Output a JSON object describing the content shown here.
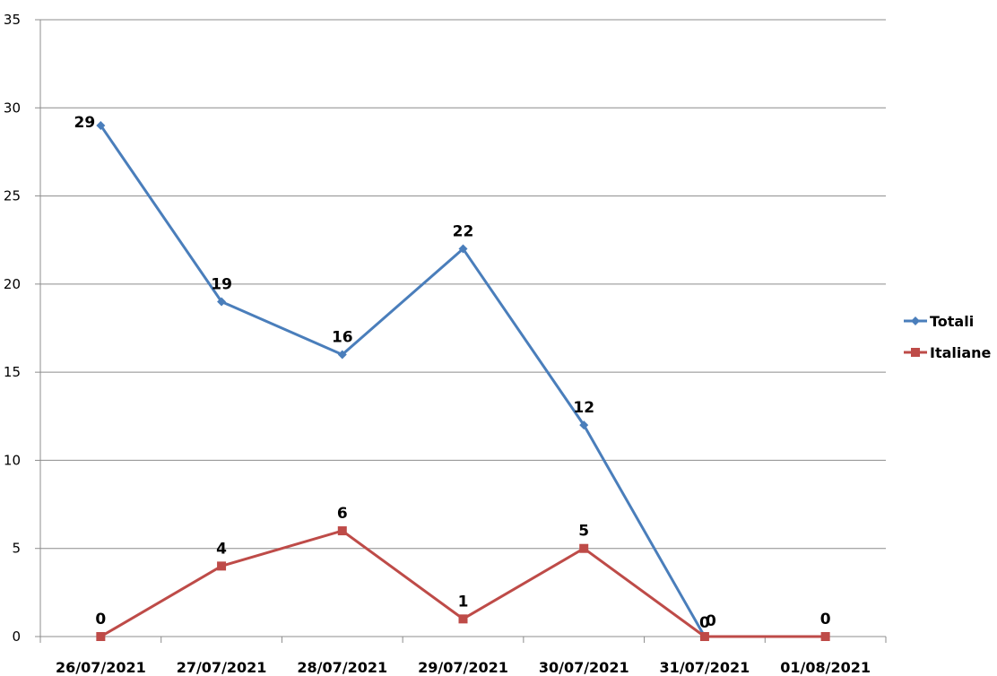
{
  "chart_data": {
    "type": "line",
    "categories": [
      "26/07/2021",
      "27/07/2021",
      "28/07/2021",
      "29/07/2021",
      "30/07/2021",
      "31/07/2021",
      "01/08/2021"
    ],
    "series": [
      {
        "name": "Totali",
        "values": [
          29,
          19,
          16,
          22,
          12,
          0,
          null
        ],
        "color": "#4a7ebb",
        "marker": "diamond"
      },
      {
        "name": "Italiane",
        "values": [
          0,
          4,
          6,
          1,
          5,
          0,
          0
        ],
        "color": "#be4b48",
        "marker": "square"
      }
    ],
    "data_labels": [
      {
        "series": "Totali",
        "index": 0,
        "text": "29"
      },
      {
        "series": "Totali",
        "index": 1,
        "text": "19"
      },
      {
        "series": "Totali",
        "index": 2,
        "text": "16"
      },
      {
        "series": "Totali",
        "index": 3,
        "text": "22"
      },
      {
        "series": "Totali",
        "index": 4,
        "text": "12"
      },
      {
        "series": "Totali",
        "index": 5,
        "text": "0"
      },
      {
        "series": "Italiane",
        "index": 0,
        "text": "0"
      },
      {
        "series": "Italiane",
        "index": 1,
        "text": "4"
      },
      {
        "series": "Italiane",
        "index": 2,
        "text": "6"
      },
      {
        "series": "Italiane",
        "index": 3,
        "text": "1"
      },
      {
        "series": "Italiane",
        "index": 4,
        "text": "5"
      },
      {
        "series": "Italiane",
        "index": 6,
        "text": "0"
      },
      {
        "text": "0",
        "category_index": 5.5
      }
    ],
    "ylim": [
      0,
      35
    ],
    "yticks": [
      0,
      5,
      10,
      15,
      20,
      25,
      30,
      35
    ],
    "grid": true,
    "legend": "right",
    "title": "",
    "xlabel": "",
    "ylabel": ""
  }
}
